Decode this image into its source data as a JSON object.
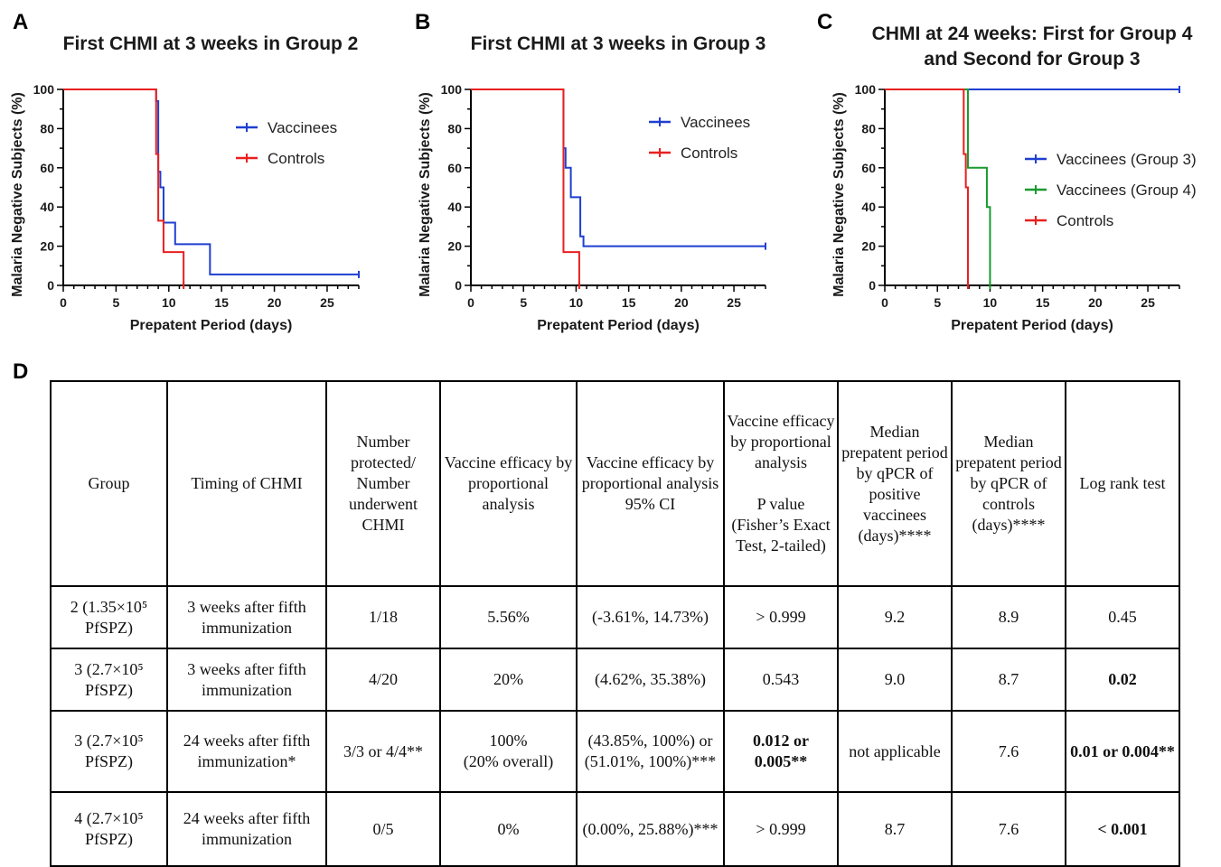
{
  "panels": [
    {
      "letter": "A",
      "chart_data": {
        "type": "line",
        "title": "First CHMI at 3 weeks in Group 2",
        "xlabel": "Prepatent Period (days)",
        "ylabel": "Malaria Negative Subjects (%)",
        "xlim": [
          0,
          28
        ],
        "ylim": [
          0,
          100
        ],
        "xticks": [
          0,
          5,
          10,
          15,
          20,
          25
        ],
        "yticks": [
          0,
          20,
          40,
          60,
          80,
          100
        ],
        "legend_position": "top-right",
        "series": [
          {
            "name": "Vaccinees",
            "color": "#1f3fd1",
            "x": [
              0,
              8.7,
              8.8,
              9.0,
              9.2,
              9.5,
              10.2,
              10.6,
              13.7,
              13.9,
              28
            ],
            "y": [
              100,
              100,
              94,
              58,
              50,
              32,
              32,
              21,
              21,
              5.56,
              5.56
            ]
          },
          {
            "name": "Controls",
            "color": "#e8201f",
            "x": [
              0,
              8.6,
              8.8,
              9.0,
              9.5,
              11.4
            ],
            "y": [
              100,
              100,
              67,
              33,
              17,
              0
            ]
          }
        ]
      }
    },
    {
      "letter": "B",
      "chart_data": {
        "type": "line",
        "title": "First CHMI at 3 weeks in Group 3",
        "xlabel": "Prepatent Period (days)",
        "ylabel": "Malaria Negative Subjects (%)",
        "xlim": [
          0,
          28
        ],
        "ylim": [
          0,
          100
        ],
        "xticks": [
          0,
          5,
          10,
          15,
          20,
          25
        ],
        "yticks": [
          0,
          20,
          40,
          60,
          80,
          100
        ],
        "legend_position": "top-right",
        "series": [
          {
            "name": "Vaccinees",
            "color": "#1f3fd1",
            "x": [
              0,
              8.7,
              8.8,
              9.0,
              9.5,
              10.4,
              10.7,
              28
            ],
            "y": [
              100,
              100,
              70,
              60,
              45,
              25,
              20,
              20
            ]
          },
          {
            "name": "Controls",
            "color": "#e8201f",
            "x": [
              0,
              8.6,
              8.8,
              10.3
            ],
            "y": [
              100,
              100,
              17,
              0
            ]
          }
        ]
      }
    },
    {
      "letter": "C",
      "chart_data": {
        "type": "line",
        "title": "CHMI at 24 weeks: First for Group 4 and Second for Group 3",
        "title_lines": [
          "CHMI at 24 weeks: First for Group 4",
          "and Second for Group 3"
        ],
        "xlabel": "Prepatent Period (days)",
        "ylabel": "Malaria Negative Subjects (%)",
        "xlim": [
          0,
          28
        ],
        "ylim": [
          0,
          100
        ],
        "xticks": [
          0,
          5,
          10,
          15,
          20,
          25
        ],
        "yticks": [
          0,
          20,
          40,
          60,
          80,
          100
        ],
        "legend_position": "center-right",
        "series": [
          {
            "name": "Vaccinees (Group 3)",
            "color": "#1f3fd1",
            "x": [
              0,
              28
            ],
            "y": [
              100,
              100
            ]
          },
          {
            "name": "Vaccinees (Group 4)",
            "color": "#1a9a2e",
            "x": [
              0,
              7.8,
              7.9,
              9.5,
              9.7,
              10.0
            ],
            "y": [
              100,
              100,
              60,
              60,
              40,
              0
            ]
          },
          {
            "name": "Controls",
            "color": "#e8201f",
            "x": [
              0,
              7.3,
              7.5,
              7.7,
              7.9
            ],
            "y": [
              100,
              100,
              67,
              50,
              0
            ]
          }
        ]
      }
    }
  ],
  "table": {
    "letter": "D",
    "headers": [
      "Group",
      "Timing of CHMI",
      "Number protected/\nNumber underwent CHMI",
      "Vaccine efficacy by proportional analysis",
      "Vaccine efficacy by proportional analysis 95% CI",
      "Vaccine efficacy by proportional analysis\n\nP value (Fisher’s Exact Test, 2-tailed)",
      "Median prepatent period by qPCR of positive vaccinees (days)****",
      "Median prepatent period by qPCR of controls (days)****",
      "Log rank test"
    ],
    "rows": [
      {
        "group": "2 (1.35×10⁵ PfSPZ)",
        "timing": "3 weeks after fifth immunization",
        "protected": "1/18",
        "efficacy": "5.56%",
        "ci": "(-3.61%, 14.73%)",
        "p": "> 0.999",
        "median_vac": "9.2",
        "median_ctrl": "8.9",
        "logrank": "0.45"
      },
      {
        "group": "3 (2.7×10⁵ PfSPZ)",
        "timing": "3 weeks after fifth immunization",
        "protected": "4/20",
        "efficacy": "20%",
        "ci": "(4.62%, 35.38%)",
        "p": "0.543",
        "median_vac": "9.0",
        "median_ctrl": "8.7",
        "logrank": "0.02"
      },
      {
        "group": "3 (2.7×10⁵ PfSPZ)",
        "timing": "24 weeks after fifth immunization*",
        "protected": "3/3 or 4/4**",
        "efficacy": "100%\n(20% overall)",
        "ci": "(43.85%, 100%) or (51.01%, 100%)***",
        "p": "0.012 or 0.005**",
        "median_vac": "not applicable",
        "median_ctrl": "7.6",
        "logrank": "0.01 or 0.004**"
      },
      {
        "group": "4 (2.7×10⁵ PfSPZ)",
        "timing": "24 weeks after fifth immunization",
        "protected": "0/5",
        "efficacy": "0%",
        "ci": "(0.00%, 25.88%)***",
        "p": "> 0.999",
        "median_vac": "8.7",
        "median_ctrl": "7.6",
        "logrank": "< 0.001"
      }
    ]
  }
}
